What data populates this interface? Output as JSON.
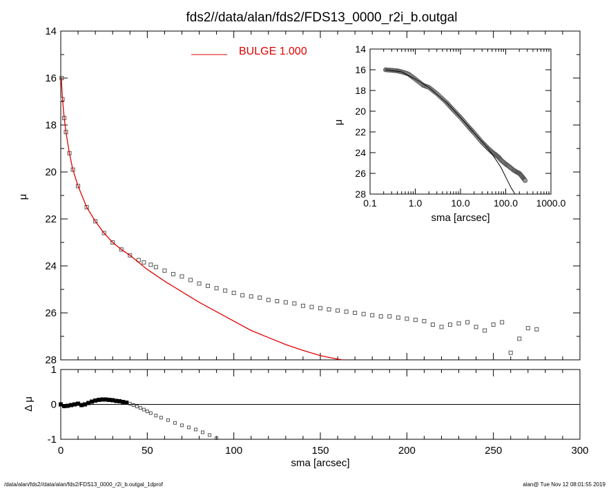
{
  "title": "fds2//data/alan/fds2/FDS13_0000_r2i_b.outgal",
  "footer": {
    "left": "/data/alan/fds2//data/alan/fds2/FDS13_0000_r2i_b.outgal_1dprof",
    "right": "alan@  Tue Nov 12 08:01:55 2019"
  },
  "colors": {
    "model": "#e00000",
    "data": "#555555",
    "axes": "#000000"
  },
  "chart_data": [
    {
      "id": "main",
      "type": "scatter",
      "ylabel": "μ",
      "xlim": [
        0,
        300
      ],
      "ylim": [
        28,
        14
      ],
      "y_inverted": true,
      "xticks": [
        0,
        50,
        100,
        150,
        200,
        250,
        300
      ],
      "yticks": [
        14,
        16,
        18,
        20,
        22,
        24,
        26,
        28
      ],
      "legend": {
        "label": "BULGE  1.000",
        "placement": "top-center"
      },
      "series": [
        {
          "style": "line",
          "role": "model",
          "x": [
            0.3,
            1,
            2,
            3,
            5,
            7,
            10,
            15,
            20,
            25,
            30,
            35,
            40,
            45,
            50,
            60,
            70,
            80,
            90,
            100,
            110,
            120,
            130,
            140,
            150,
            160,
            163
          ],
          "y": [
            16.0,
            16.9,
            17.7,
            18.3,
            19.2,
            19.9,
            20.6,
            21.5,
            22.1,
            22.6,
            23.0,
            23.3,
            23.55,
            23.85,
            24.15,
            24.65,
            25.1,
            25.55,
            25.95,
            26.35,
            26.75,
            27.05,
            27.35,
            27.6,
            27.82,
            27.97,
            28.0
          ]
        },
        {
          "style": "markers",
          "role": "data",
          "x": [
            0.5,
            1,
            2,
            3,
            5,
            7,
            10,
            15,
            20,
            25,
            30,
            35,
            40,
            45,
            48,
            52,
            55,
            60,
            65,
            70,
            75,
            80,
            85,
            90,
            95,
            100,
            105,
            110,
            115,
            120,
            125,
            130,
            135,
            140,
            145,
            150,
            155,
            160,
            165,
            170,
            175,
            180,
            185,
            190,
            195,
            200,
            205,
            210,
            215,
            220,
            225,
            230,
            235,
            240,
            245,
            250,
            255,
            260,
            265,
            270,
            275
          ],
          "y": [
            16.0,
            16.9,
            17.7,
            18.3,
            19.2,
            19.9,
            20.6,
            21.5,
            22.1,
            22.6,
            23.0,
            23.3,
            23.55,
            23.75,
            23.85,
            23.95,
            24.05,
            24.2,
            24.35,
            24.45,
            24.6,
            24.75,
            24.85,
            24.95,
            25.05,
            25.15,
            25.25,
            25.3,
            25.35,
            25.45,
            25.5,
            25.55,
            25.6,
            25.7,
            25.75,
            25.8,
            25.85,
            25.9,
            25.95,
            26.0,
            26.05,
            26.1,
            26.15,
            26.15,
            26.2,
            26.25,
            26.3,
            26.35,
            26.5,
            26.6,
            26.5,
            26.45,
            26.4,
            26.6,
            26.75,
            26.5,
            26.4,
            27.7,
            27.1,
            26.65,
            26.7
          ]
        }
      ]
    },
    {
      "id": "inset",
      "type": "scatter",
      "xlabel": "sma [arcsec]",
      "ylabel": "μ",
      "xscale": "log",
      "xlim": [
        0.1,
        1000
      ],
      "ylim": [
        28,
        14
      ],
      "y_inverted": true,
      "xticks": [
        0.1,
        1.0,
        10.0,
        100.0,
        1000.0
      ],
      "xticklabels": [
        "0.1",
        "1.0",
        "10.0",
        "100.0",
        "1000.0"
      ],
      "yticks": [
        14,
        16,
        18,
        20,
        22,
        24,
        26,
        28
      ],
      "series": [
        {
          "style": "markers",
          "role": "data",
          "x": [
            0.22,
            0.3,
            0.4,
            0.5,
            0.7,
            1.0,
            1.5,
            2,
            3,
            5,
            7,
            10,
            15,
            20,
            30,
            40,
            50,
            60,
            70,
            80,
            100,
            120,
            150,
            180,
            200,
            220,
            250,
            270
          ],
          "y": [
            16.0,
            16.05,
            16.1,
            16.2,
            16.4,
            16.9,
            17.5,
            17.7,
            18.3,
            19.2,
            19.9,
            20.6,
            21.5,
            22.1,
            23.0,
            23.55,
            23.95,
            24.2,
            24.45,
            24.75,
            25.1,
            25.35,
            25.7,
            25.9,
            26.0,
            26.2,
            26.5,
            26.7
          ]
        },
        {
          "style": "line",
          "role": "model",
          "x": [
            0.22,
            0.5,
            1,
            2,
            5,
            10,
            20,
            40,
            60,
            80,
            100,
            130,
            160
          ],
          "y": [
            16.0,
            16.2,
            16.9,
            17.7,
            19.2,
            20.6,
            22.1,
            23.55,
            24.65,
            25.5,
            26.35,
            27.35,
            28.0
          ]
        }
      ]
    },
    {
      "id": "residual",
      "type": "scatter",
      "xlabel": "sma [arcsec]",
      "ylabel": "Δ μ",
      "xlim": [
        0,
        300
      ],
      "ylim": [
        -1,
        1
      ],
      "xticks": [
        0,
        50,
        100,
        150,
        200,
        250,
        300
      ],
      "yticks": [
        -1,
        0,
        1
      ],
      "zero_line": true,
      "series": [
        {
          "style": "markers",
          "role": "data",
          "x": [
            0,
            2,
            4,
            6,
            8,
            10,
            12,
            14,
            16,
            18,
            20,
            22,
            24,
            26,
            28,
            30,
            32,
            34,
            36,
            38,
            40,
            42,
            44,
            46,
            48,
            50,
            52,
            55,
            58,
            62,
            66,
            70,
            74,
            78,
            82,
            86,
            90
          ],
          "y": [
            0.0,
            -0.05,
            -0.04,
            -0.02,
            0.0,
            0.02,
            -0.02,
            0.0,
            0.04,
            0.08,
            0.11,
            0.13,
            0.14,
            0.14,
            0.13,
            0.12,
            0.1,
            0.09,
            0.07,
            0.05,
            0.02,
            -0.02,
            -0.06,
            -0.1,
            -0.15,
            -0.2,
            -0.25,
            -0.32,
            -0.38,
            -0.45,
            -0.53,
            -0.6,
            -0.66,
            -0.72,
            -0.8,
            -0.88,
            -0.97
          ]
        }
      ]
    }
  ]
}
